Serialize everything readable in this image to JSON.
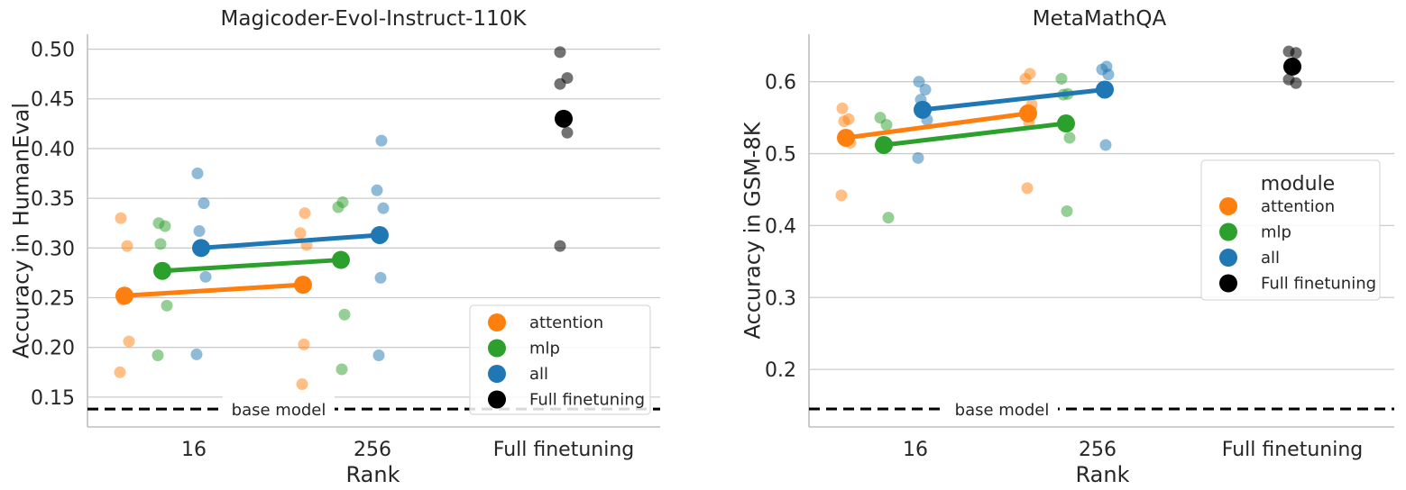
{
  "chart_data": [
    {
      "type": "scatter",
      "title": "Magicoder-Evol-Instruct-110K",
      "xlabel": "Rank",
      "ylabel": "Accuracy in HumanEval",
      "categories": [
        "16",
        "256",
        "Full finetuning"
      ],
      "ylim": [
        0.12,
        0.515
      ],
      "yticks": [
        0.15,
        0.2,
        0.25,
        0.3,
        0.35,
        0.4,
        0.45,
        0.5
      ],
      "ytick_labels": [
        "0.15",
        "0.20",
        "0.25",
        "0.30",
        "0.35",
        "0.40",
        "0.45",
        "0.50"
      ],
      "grid": true,
      "legend": {
        "position": "bottom-right",
        "title": "",
        "items": [
          "attention",
          "mlp",
          "all",
          "Full finetuning"
        ]
      },
      "baseline": {
        "label": "base model",
        "value": 0.138
      },
      "series": [
        {
          "name": "attention",
          "color": "#ff7f0e",
          "means": [
            {
              "cat": 0,
              "value": 0.252
            },
            {
              "cat": 1,
              "value": 0.263
            }
          ],
          "points": [
            {
              "cat": 0,
              "value": 0.33
            },
            {
              "cat": 0,
              "value": 0.302
            },
            {
              "cat": 0,
              "value": 0.248
            },
            {
              "cat": 0,
              "value": 0.206
            },
            {
              "cat": 0,
              "value": 0.175
            },
            {
              "cat": 1,
              "value": 0.335
            },
            {
              "cat": 1,
              "value": 0.315
            },
            {
              "cat": 1,
              "value": 0.303
            },
            {
              "cat": 1,
              "value": 0.203
            },
            {
              "cat": 1,
              "value": 0.163
            }
          ]
        },
        {
          "name": "mlp",
          "color": "#2ca02c",
          "means": [
            {
              "cat": 0,
              "value": 0.277
            },
            {
              "cat": 1,
              "value": 0.288
            }
          ],
          "points": [
            {
              "cat": 0,
              "value": 0.325
            },
            {
              "cat": 0,
              "value": 0.322
            },
            {
              "cat": 0,
              "value": 0.304
            },
            {
              "cat": 0,
              "value": 0.242
            },
            {
              "cat": 0,
              "value": 0.192
            },
            {
              "cat": 1,
              "value": 0.346
            },
            {
              "cat": 1,
              "value": 0.341
            },
            {
              "cat": 1,
              "value": 0.233
            },
            {
              "cat": 1,
              "value": 0.178
            }
          ]
        },
        {
          "name": "all",
          "color": "#1f77b4",
          "means": [
            {
              "cat": 0,
              "value": 0.3
            },
            {
              "cat": 1,
              "value": 0.313
            }
          ],
          "points": [
            {
              "cat": 0,
              "value": 0.375
            },
            {
              "cat": 0,
              "value": 0.345
            },
            {
              "cat": 0,
              "value": 0.317
            },
            {
              "cat": 0,
              "value": 0.271
            },
            {
              "cat": 0,
              "value": 0.193
            },
            {
              "cat": 1,
              "value": 0.408
            },
            {
              "cat": 1,
              "value": 0.358
            },
            {
              "cat": 1,
              "value": 0.34
            },
            {
              "cat": 1,
              "value": 0.27
            },
            {
              "cat": 1,
              "value": 0.192
            }
          ]
        },
        {
          "name": "Full finetuning",
          "color": "#000000",
          "means": [
            {
              "cat": 2,
              "value": 0.43
            }
          ],
          "points": [
            {
              "cat": 2,
              "value": 0.497
            },
            {
              "cat": 2,
              "value": 0.471
            },
            {
              "cat": 2,
              "value": 0.465
            },
            {
              "cat": 2,
              "value": 0.416
            },
            {
              "cat": 2,
              "value": 0.302
            }
          ]
        }
      ]
    },
    {
      "type": "scatter",
      "title": "MetaMathQA",
      "xlabel": "Rank",
      "ylabel": "Accuracy in GSM-8K",
      "categories": [
        "16",
        "256",
        "Full finetuning"
      ],
      "ylim": [
        0.12,
        0.666
      ],
      "yticks": [
        0.2,
        0.3,
        0.4,
        0.5,
        0.6
      ],
      "ytick_labels": [
        "0.2",
        "0.3",
        "0.4",
        "0.5",
        "0.6"
      ],
      "grid": true,
      "legend": {
        "position": "right",
        "title": "module",
        "items": [
          "attention",
          "mlp",
          "all",
          "Full finetuning"
        ]
      },
      "baseline": {
        "label": "base model",
        "value": 0.145
      },
      "series": [
        {
          "name": "attention",
          "color": "#ff7f0e",
          "means": [
            {
              "cat": 0,
              "value": 0.522
            },
            {
              "cat": 1,
              "value": 0.556
            }
          ],
          "points": [
            {
              "cat": 0,
              "value": 0.563
            },
            {
              "cat": 0,
              "value": 0.548
            },
            {
              "cat": 0,
              "value": 0.545
            },
            {
              "cat": 0,
              "value": 0.515
            },
            {
              "cat": 0,
              "value": 0.442
            },
            {
              "cat": 1,
              "value": 0.611
            },
            {
              "cat": 1,
              "value": 0.604
            },
            {
              "cat": 1,
              "value": 0.568
            },
            {
              "cat": 1,
              "value": 0.543
            },
            {
              "cat": 1,
              "value": 0.452
            }
          ]
        },
        {
          "name": "mlp",
          "color": "#2ca02c",
          "means": [
            {
              "cat": 0,
              "value": 0.512
            },
            {
              "cat": 1,
              "value": 0.542
            }
          ],
          "points": [
            {
              "cat": 0,
              "value": 0.55
            },
            {
              "cat": 0,
              "value": 0.54
            },
            {
              "cat": 0,
              "value": 0.516
            },
            {
              "cat": 0,
              "value": 0.411
            },
            {
              "cat": 1,
              "value": 0.604
            },
            {
              "cat": 1,
              "value": 0.583
            },
            {
              "cat": 1,
              "value": 0.582
            },
            {
              "cat": 1,
              "value": 0.522
            },
            {
              "cat": 1,
              "value": 0.42
            }
          ]
        },
        {
          "name": "all",
          "color": "#1f77b4",
          "means": [
            {
              "cat": 0,
              "value": 0.561
            },
            {
              "cat": 1,
              "value": 0.589
            }
          ],
          "points": [
            {
              "cat": 0,
              "value": 0.6
            },
            {
              "cat": 0,
              "value": 0.589
            },
            {
              "cat": 0,
              "value": 0.575
            },
            {
              "cat": 0,
              "value": 0.547
            },
            {
              "cat": 0,
              "value": 0.494
            },
            {
              "cat": 1,
              "value": 0.621
            },
            {
              "cat": 1,
              "value": 0.617
            },
            {
              "cat": 1,
              "value": 0.61
            },
            {
              "cat": 1,
              "value": 0.512
            }
          ]
        },
        {
          "name": "Full finetuning",
          "color": "#000000",
          "means": [
            {
              "cat": 2,
              "value": 0.621
            }
          ],
          "points": [
            {
              "cat": 2,
              "value": 0.642
            },
            {
              "cat": 2,
              "value": 0.64
            },
            {
              "cat": 2,
              "value": 0.603
            },
            {
              "cat": 2,
              "value": 0.598
            }
          ]
        }
      ]
    }
  ]
}
